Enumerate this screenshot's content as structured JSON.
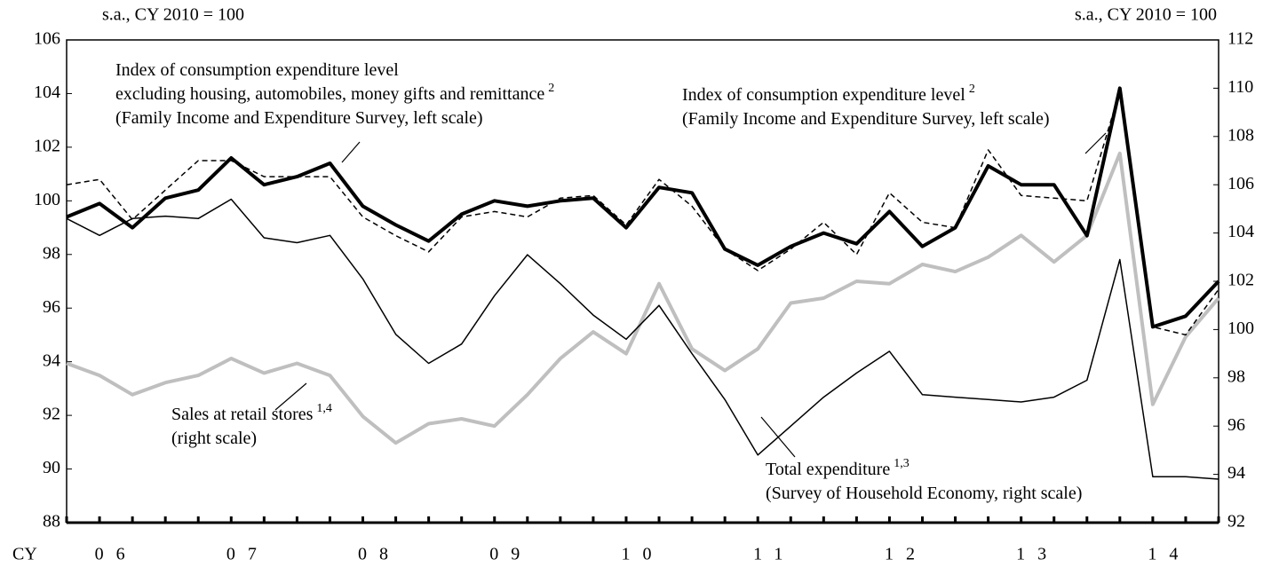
{
  "chart_data": {
    "type": "line",
    "y_unit": "s.a., CY 2010 = 100",
    "y2_unit": "s.a., CY 2010 = 100",
    "x_prefix": "CY",
    "categories": [
      null,
      "06",
      null,
      null,
      null,
      "07",
      null,
      null,
      null,
      "08",
      null,
      null,
      null,
      "09",
      null,
      null,
      null,
      "10",
      null,
      null,
      null,
      "11",
      null,
      null,
      null,
      "12",
      null,
      null,
      null,
      "13",
      null,
      null,
      null,
      "14",
      null,
      null
    ],
    "ylim": [
      88,
      106
    ],
    "yticks": [
      88,
      90,
      92,
      94,
      96,
      98,
      100,
      102,
      104,
      106
    ],
    "y2lim": [
      92,
      112
    ],
    "y2ticks": [
      92,
      94,
      96,
      98,
      100,
      102,
      104,
      106,
      108,
      110,
      112
    ],
    "series": [
      {
        "name": "Index of consumption expenditure level",
        "name2": "excluding housing, automobiles, money gifts and remittance",
        "sup": "2",
        "note": "(Family Income and Expenditure Survey, left scale)",
        "color": "#000000",
        "width": 4,
        "style": "solid",
        "values": [
          99.4,
          99.9,
          99.0,
          100.1,
          100.4,
          101.6,
          100.6,
          100.9,
          101.4,
          99.8,
          99.1,
          98.5,
          99.5,
          100.0,
          99.8,
          100.0,
          100.1,
          99.0,
          100.5,
          100.3,
          98.2,
          97.6,
          98.3,
          98.8,
          98.4,
          99.6,
          98.3,
          99.0,
          101.3,
          100.6,
          100.6,
          98.7,
          104.2,
          95.3,
          95.7,
          97.0
        ]
      },
      {
        "name": "Index of consumption expenditure level",
        "sup": "2",
        "note": "(Family Income and Expenditure Survey, left scale)",
        "color": "#000000",
        "width": 1.5,
        "style": "dashed",
        "values": [
          100.6,
          100.8,
          99.3,
          100.4,
          101.5,
          101.5,
          100.9,
          100.9,
          100.9,
          99.4,
          98.7,
          98.1,
          99.4,
          99.6,
          99.4,
          100.1,
          100.2,
          99.1,
          100.8,
          99.8,
          98.2,
          97.4,
          98.2,
          99.2,
          98.0,
          100.3,
          99.2,
          99.0,
          101.9,
          100.2,
          100.1,
          100.0,
          104.1,
          95.3,
          95.0,
          96.7
        ]
      },
      {
        "name": "Total expenditure",
        "sup": "1,3",
        "note": "(Survey of Household Economy, right scale)",
        "color": "#000000",
        "width": 1.5,
        "style": "solid",
        "axis": "y2",
        "values": [
          104.6,
          103.9,
          104.6,
          104.7,
          104.6,
          105.4,
          103.8,
          103.6,
          103.9,
          102.1,
          99.8,
          98.6,
          99.4,
          101.4,
          103.1,
          101.9,
          100.6,
          99.6,
          101.0,
          99.0,
          97.1,
          94.8,
          96.0,
          97.2,
          98.2,
          99.1,
          97.3,
          97.2,
          97.1,
          97.0,
          97.2,
          97.9,
          102.9,
          93.9,
          93.9,
          93.8
        ]
      },
      {
        "name": "Sales at retail stores",
        "sup": "1,4",
        "note": "(right scale)",
        "color": "#bfbfbf",
        "width": 4,
        "style": "solid",
        "axis": "y2",
        "values": [
          98.6,
          98.1,
          97.3,
          97.8,
          98.1,
          98.8,
          98.2,
          98.6,
          98.1,
          96.4,
          95.3,
          96.1,
          96.3,
          96.0,
          97.3,
          98.8,
          99.9,
          99.0,
          101.9,
          99.2,
          98.3,
          99.2,
          101.1,
          101.3,
          102.0,
          101.9,
          102.7,
          102.4,
          103.0,
          103.9,
          102.8,
          103.9,
          107.3,
          96.9,
          99.7,
          101.3
        ]
      }
    ]
  }
}
